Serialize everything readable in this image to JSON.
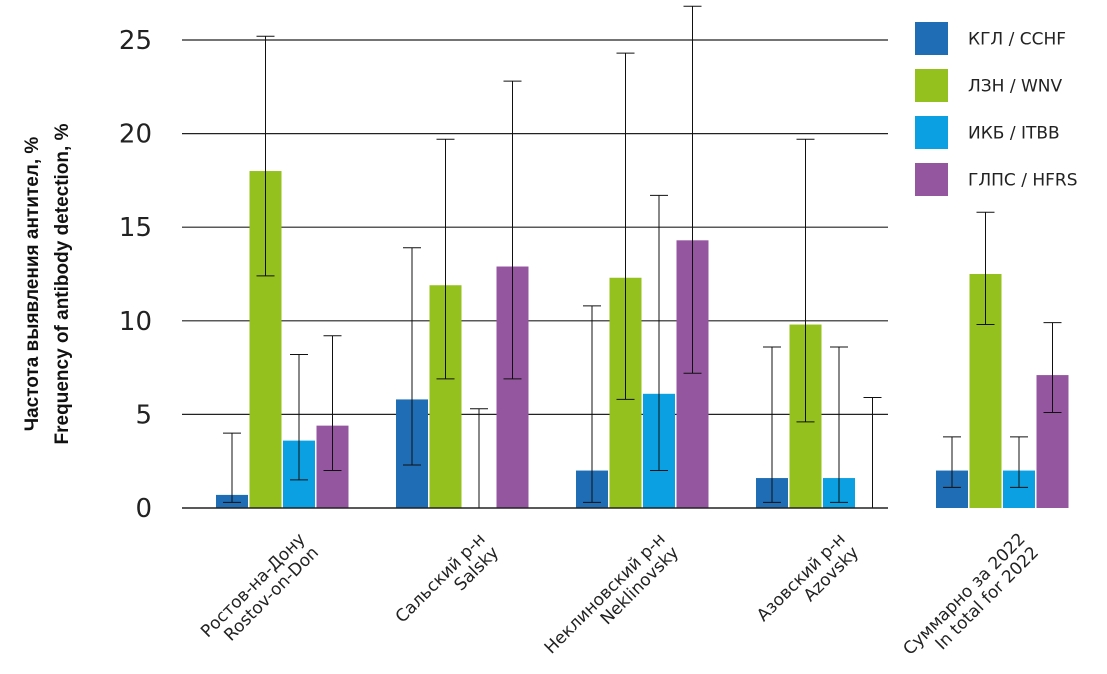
{
  "chart_data": {
    "type": "bar",
    "ylabel_lines": [
      "Частота выявления антител, %",
      "Frequency of antibody detection, %"
    ],
    "ylim": [
      0,
      25
    ],
    "yticks": [
      0,
      5,
      10,
      15,
      20,
      25
    ],
    "grid": true,
    "legend_position": "top-right",
    "categories": [
      [
        "Ростов-на-Дону",
        "Rostov-on-Don"
      ],
      [
        "Сальский р-н",
        "Salsky"
      ],
      [
        "Неклиновский р-н",
        "Neklinovsky"
      ],
      [
        "Азовский р-н",
        "Azovsky"
      ],
      [
        "Суммарно за 2022",
        "In total for 2022"
      ]
    ],
    "series": [
      {
        "name": "КГЛ / CCHF",
        "color": "#1f6db5",
        "values": [
          0.7,
          5.8,
          2.0,
          1.6,
          2.0
        ],
        "err_low": [
          0.3,
          2.3,
          0.3,
          0.3,
          1.1
        ],
        "err_high": [
          4.0,
          13.9,
          10.8,
          8.6,
          3.8
        ]
      },
      {
        "name": "ЛЗН / WNV",
        "color": "#95c11f",
        "values": [
          18.0,
          11.9,
          12.3,
          9.8,
          12.5
        ],
        "err_low": [
          12.4,
          6.9,
          5.8,
          4.6,
          9.8
        ],
        "err_high": [
          25.2,
          19.7,
          24.3,
          19.7,
          15.8
        ]
      },
      {
        "name": "ИКБ / ITBB",
        "color": "#0aa0e2",
        "values": [
          3.6,
          0.0,
          6.1,
          1.6,
          2.0
        ],
        "err_low": [
          1.5,
          0.0,
          2.0,
          0.3,
          1.1
        ],
        "err_high": [
          8.2,
          5.3,
          16.7,
          8.6,
          3.8
        ]
      },
      {
        "name": "ГЛПС / HFRS",
        "color": "#9556a0",
        "values": [
          4.4,
          12.9,
          14.3,
          0.0,
          7.1
        ],
        "err_low": [
          2.0,
          6.9,
          7.2,
          0.0,
          5.1
        ],
        "err_high": [
          9.2,
          22.8,
          26.8,
          5.9,
          9.9
        ]
      }
    ]
  }
}
